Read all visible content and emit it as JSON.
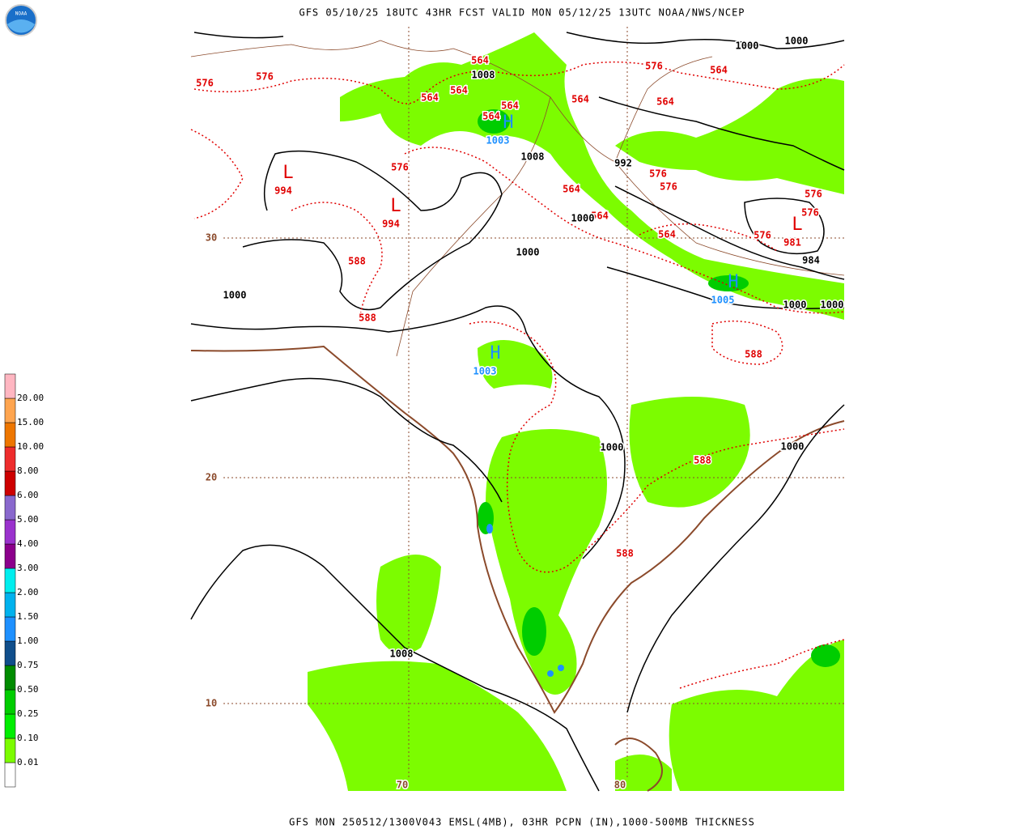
{
  "header": {
    "title": "GFS 05/10/25 18UTC 43HR FCST VALID MON 05/12/25 13UTC NOAA/NWS/NCEP",
    "logo": "NOAA"
  },
  "footer": "GFS MON 250512/1300V043 EMSL(4MB), 03HR PCPN (IN),1000-500MB THICKNESS",
  "legend": {
    "labels": [
      "0.01",
      "0.10",
      "0.25",
      "0.50",
      "0.75",
      "1.00",
      "1.50",
      "2.00",
      "3.00",
      "4.00",
      "5.00",
      "6.00",
      "8.00",
      "10.00",
      "15.00",
      "20.00"
    ],
    "colors": [
      "#ffffff",
      "#7cfc00",
      "#00ee00",
      "#00cd00",
      "#008b00",
      "#104e8b",
      "#1e90ff",
      "#00b2ee",
      "#00eeee",
      "#8b008b",
      "#9a32cd",
      "#8968cd",
      "#cd0000",
      "#ee2c2c",
      "#ee7600",
      "#ffa54f",
      "#ffb6c1"
    ]
  },
  "map": {
    "lat_labels": [
      "30",
      "20",
      "10"
    ],
    "lon_labels": [
      "70",
      "80"
    ],
    "thickness_labels": [
      "576",
      "576",
      "564",
      "564",
      "564",
      "564",
      "564",
      "576",
      "564",
      "564",
      "564",
      "576",
      "564",
      "564",
      "576",
      "576",
      "576",
      "576",
      "576",
      "564",
      "588",
      "588",
      "588",
      "588",
      "588"
    ],
    "pressure_labels": [
      "1008",
      "1000",
      "1000",
      "1008",
      "992",
      "1000",
      "1000",
      "1000",
      "984",
      "1000",
      "1000",
      "1000",
      "1000",
      "1008"
    ],
    "lows": [
      {
        "symbol": "L",
        "value": "994"
      },
      {
        "symbol": "L",
        "value": "994"
      },
      {
        "symbol": "L",
        "value": "981"
      }
    ],
    "highs": [
      {
        "symbol": "H",
        "value": "1003"
      },
      {
        "symbol": "H",
        "value": "1005"
      },
      {
        "symbol": "H",
        "value": "1003"
      }
    ]
  }
}
